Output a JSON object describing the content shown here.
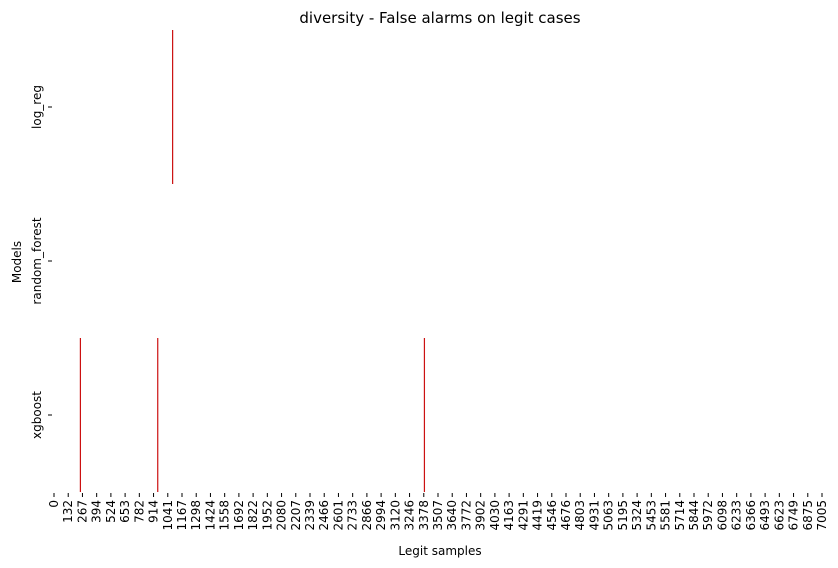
{
  "chart_data": {
    "type": "heatmap",
    "title": "diversity - False alarms on legit cases",
    "xlabel": "Legit samples",
    "ylabel": "Models",
    "rows": [
      "log_reg",
      "random_forest",
      "xgboost"
    ],
    "x_range": [
      0,
      7070
    ],
    "x_tick_labels": [
      "0",
      "132",
      "267",
      "394",
      "524",
      "653",
      "782",
      "914",
      "1041",
      "1167",
      "1298",
      "1424",
      "1558",
      "1692",
      "1822",
      "1952",
      "2080",
      "2207",
      "2339",
      "2466",
      "2601",
      "2733",
      "2866",
      "2994",
      "3120",
      "3246",
      "3378",
      "3507",
      "3640",
      "3772",
      "3902",
      "4030",
      "4163",
      "4291",
      "4419",
      "4546",
      "4676",
      "4803",
      "4931",
      "5063",
      "5195",
      "5324",
      "5453",
      "5581",
      "5714",
      "5844",
      "5972",
      "6098",
      "6233",
      "6366",
      "6493",
      "6623",
      "6749",
      "6875",
      "7005"
    ],
    "false_alarms": [
      {
        "model": "log_reg",
        "sample_positions": [
          1092
        ]
      },
      {
        "model": "random_forest",
        "sample_positions": []
      },
      {
        "model": "xgboost",
        "sample_positions": [
          243,
          955,
          3410
        ]
      }
    ],
    "mark_color": "#cc1111",
    "background_color": "#ffffff",
    "colorbar": false,
    "grid": false
  }
}
